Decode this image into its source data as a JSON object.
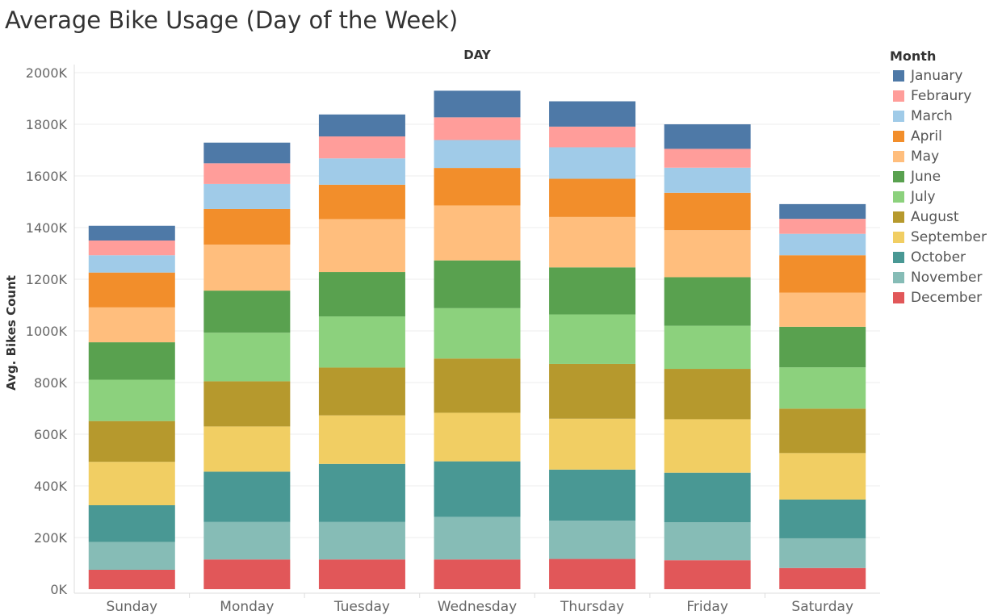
{
  "title": "Average Bike Usage (Day of the Week)",
  "chart_data": {
    "type": "bar",
    "stacked": true,
    "title": "Average Bike Usage (Day of the Week)",
    "column_header": "DAY",
    "xlabel": "",
    "ylabel": "Avg. Bikes Count",
    "ylim": [
      0,
      2000000
    ],
    "yticks": [
      0,
      200000,
      400000,
      600000,
      800000,
      1000000,
      1200000,
      1400000,
      1600000,
      1800000,
      2000000
    ],
    "ytick_labels": [
      "0K",
      "200K",
      "400K",
      "600K",
      "800K",
      "1000K",
      "1200K",
      "1400K",
      "1600K",
      "1800K",
      "2000K"
    ],
    "grid": true,
    "legend_title": "Month",
    "legend_position": "right",
    "categories": [
      "Sunday",
      "Monday",
      "Tuesday",
      "Wednesday",
      "Thursday",
      "Friday",
      "Saturday"
    ],
    "series": [
      {
        "name": "December",
        "color": "#e15759",
        "values": [
          75000,
          115000,
          115000,
          115000,
          117000,
          112000,
          82000
        ]
      },
      {
        "name": "November",
        "color": "#86bcb6",
        "values": [
          108000,
          145000,
          145000,
          165000,
          148000,
          147000,
          115000
        ]
      },
      {
        "name": "October",
        "color": "#499894",
        "values": [
          142000,
          195000,
          225000,
          215000,
          198000,
          192000,
          150000
        ]
      },
      {
        "name": "September",
        "color": "#f1ce63",
        "values": [
          168000,
          175000,
          188000,
          188000,
          197000,
          207000,
          180000
        ]
      },
      {
        "name": "August",
        "color": "#b6992d",
        "values": [
          158000,
          175000,
          185000,
          210000,
          212000,
          195000,
          172000
        ]
      },
      {
        "name": "July",
        "color": "#8cd17d",
        "values": [
          160000,
          188000,
          198000,
          195000,
          192000,
          167000,
          160000
        ]
      },
      {
        "name": "June",
        "color": "#59a14f",
        "values": [
          145000,
          163000,
          172000,
          185000,
          182000,
          188000,
          157000
        ]
      },
      {
        "name": "May",
        "color": "#ffbe7d",
        "values": [
          135000,
          178000,
          205000,
          213000,
          195000,
          182000,
          132000
        ]
      },
      {
        "name": "April",
        "color": "#f28e2b",
        "values": [
          135000,
          138000,
          133000,
          145000,
          148000,
          145000,
          145000
        ]
      },
      {
        "name": "March",
        "color": "#a0cbe8",
        "values": [
          67000,
          97000,
          102000,
          108000,
          122000,
          97000,
          83000
        ]
      },
      {
        "name": "Febraury",
        "color": "#ff9d9a",
        "values": [
          57000,
          80000,
          85000,
          88000,
          80000,
          73000,
          58000
        ]
      },
      {
        "name": "January",
        "color": "#4e79a7",
        "values": [
          57000,
          80000,
          85000,
          103000,
          98000,
          95000,
          57000
        ]
      }
    ]
  },
  "legend": {
    "title": "Month",
    "items": [
      {
        "label": "January",
        "color": "#4e79a7"
      },
      {
        "label": "Febraury",
        "color": "#ff9d9a"
      },
      {
        "label": "March",
        "color": "#a0cbe8"
      },
      {
        "label": "April",
        "color": "#f28e2b"
      },
      {
        "label": "May",
        "color": "#ffbe7d"
      },
      {
        "label": "June",
        "color": "#59a14f"
      },
      {
        "label": "July",
        "color": "#8cd17d"
      },
      {
        "label": "August",
        "color": "#b6992d"
      },
      {
        "label": "September",
        "color": "#f1ce63"
      },
      {
        "label": "October",
        "color": "#499894"
      },
      {
        "label": "November",
        "color": "#86bcb6"
      },
      {
        "label": "December",
        "color": "#e15759"
      }
    ]
  }
}
